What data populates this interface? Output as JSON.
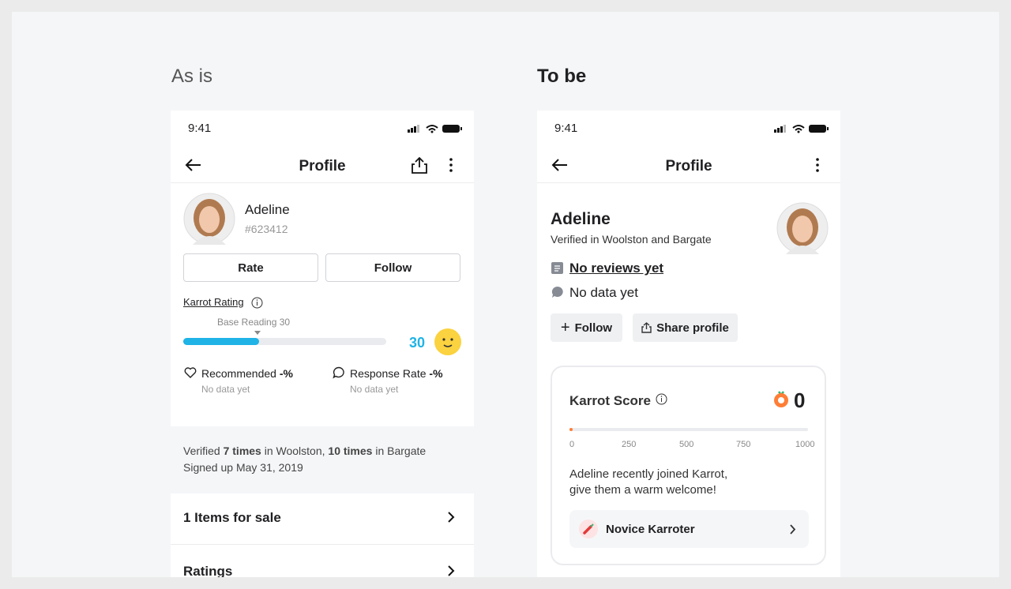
{
  "left": {
    "caption": "As is",
    "status_time": "9:41",
    "nav_title": "Profile",
    "name": "Adeline",
    "user_id": "#623412",
    "buttons": [
      "Rate",
      "Follow"
    ],
    "rating_label": "Karrot Rating",
    "base_reading": "Base Reading 30",
    "rating_value": "30",
    "stats": [
      {
        "label": "Recommended",
        "value": "-%",
        "note": "No data yet"
      },
      {
        "label": "Response Rate",
        "value": "-%",
        "note": "No data yet"
      }
    ],
    "verified": [
      "Verified ",
      "7 times",
      " in Woolston, ",
      "10 times",
      " in Bargate"
    ],
    "signed_up": "Signed up May 31, 2019",
    "menu": [
      "1 Items for sale",
      "Ratings"
    ]
  },
  "right": {
    "caption": "To be",
    "status_time": "9:41",
    "nav_title": "Profile",
    "name": "Adeline",
    "verified": "Verified in Woolston and Bargate",
    "reviews": "No reviews yet",
    "response": "No data yet",
    "buttons": [
      "Follow",
      "Share profile"
    ],
    "score_card": {
      "title": "Karrot Score",
      "score": "0",
      "ticks": [
        "0",
        "250",
        "500",
        "750",
        "1000"
      ],
      "message": [
        "Adeline recently joined Karrot,",
        "give them a warm welcome!"
      ],
      "badge": "Novice Karroter"
    }
  }
}
